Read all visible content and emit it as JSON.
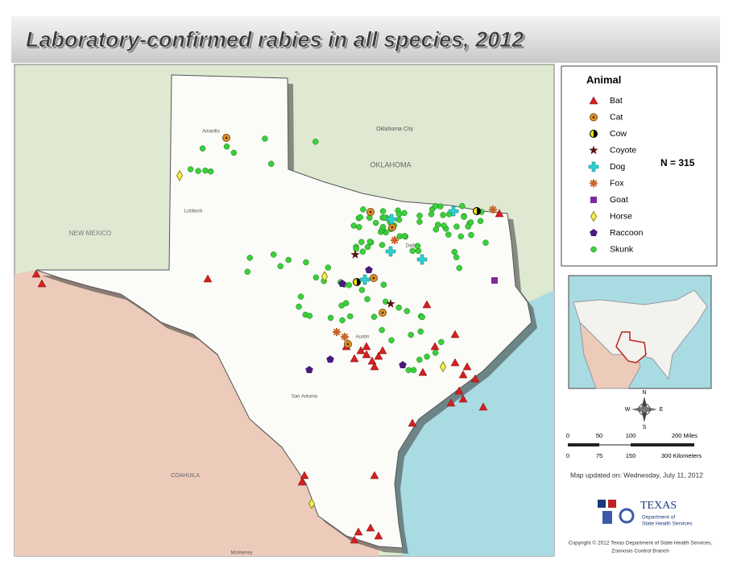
{
  "title": "Laboratory-confirmed rabies in all species, 2012",
  "places": [
    "OKLAHOMA",
    "Oklahoma City",
    "NEW MEXICO",
    "Lubbock",
    "Amarillo",
    "Dallas",
    "Austin",
    "San Antonio",
    "COAHUILA",
    "Monterrey"
  ],
  "legend": {
    "title": "Animal",
    "items": [
      "Bat",
      "Cat",
      "Cow",
      "Coyote",
      "Dog",
      "Fox",
      "Goat",
      "Horse",
      "Raccoon",
      "Skunk"
    ],
    "count": "N = 315"
  },
  "compass": [
    "N",
    "W",
    "E",
    "S"
  ],
  "scale": {
    "miles": [
      "0",
      "50",
      "100",
      "200 Miles"
    ],
    "km": [
      "0",
      "75",
      "150",
      "300 Kilometers"
    ]
  },
  "updated": "Map updated on: Wednesday, July 11, 2012",
  "logo": {
    "name": "TEXAS",
    "sub": [
      "Department of",
      "State Health Services"
    ]
  },
  "copyright": [
    "Copyright © 2012 Texas Department of State Health Services,",
    "Zoonosis Control Branch"
  ]
}
